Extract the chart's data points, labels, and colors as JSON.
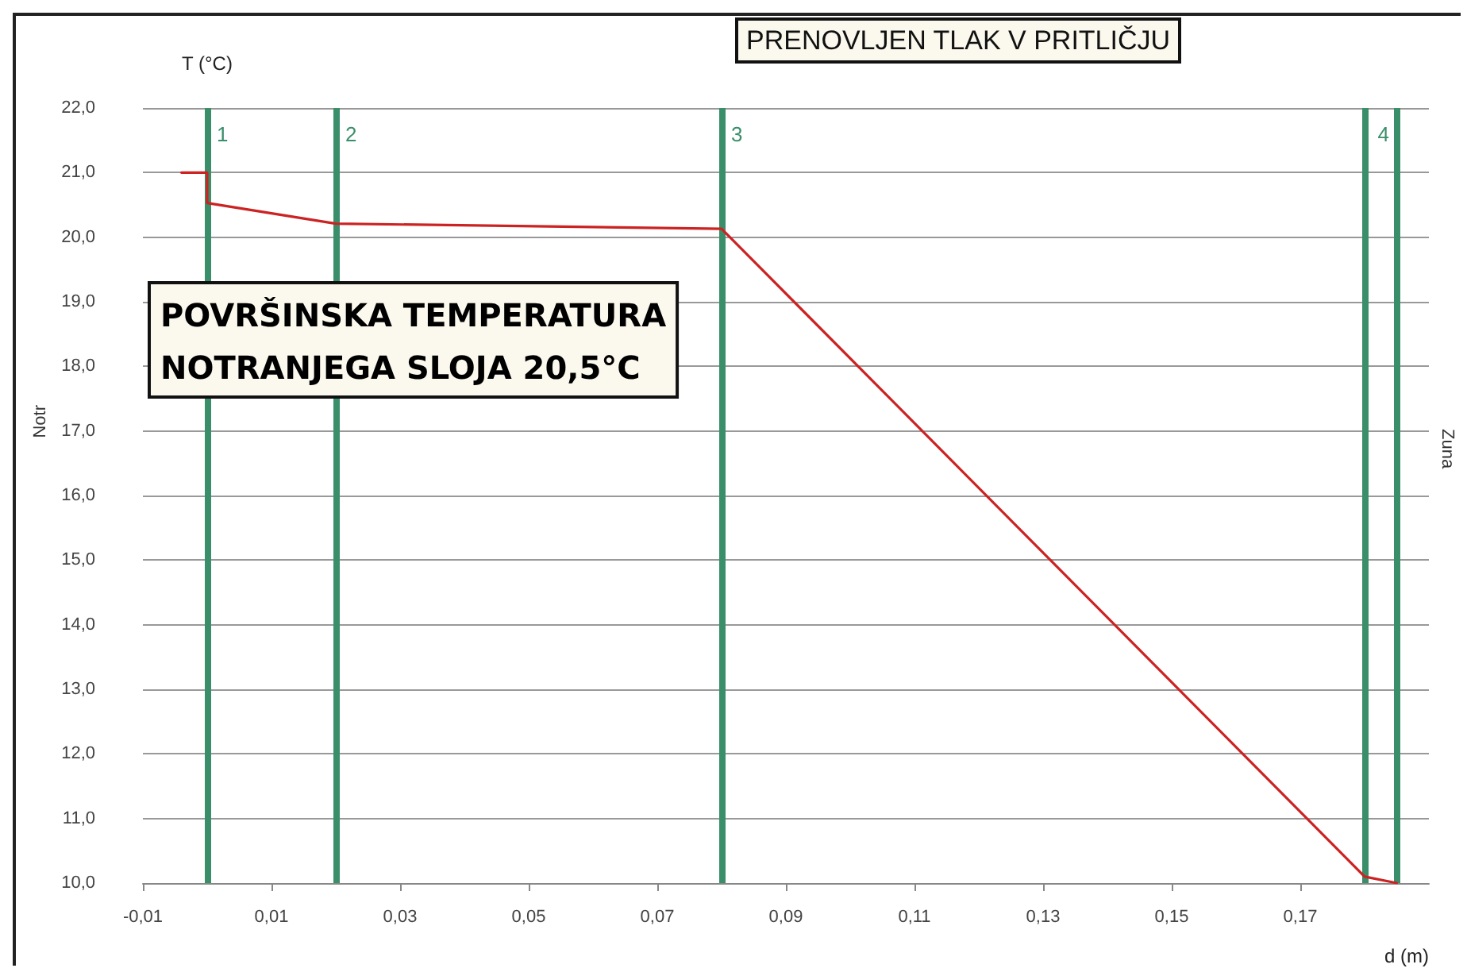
{
  "chart_data": {
    "type": "line",
    "title": "PRENOVLJEN TLAK V PRITLIČJU",
    "xlabel": "d (m)",
    "ylabel": "T (°C)",
    "x": [
      -0.004,
      0.0,
      0.0,
      0.02,
      0.08,
      0.18,
      0.185
    ],
    "series": [
      {
        "color": "#cc2222",
        "values": [
          21.0,
          21.0,
          20.53,
          20.21,
          20.13,
          10.1,
          10.0
        ]
      }
    ],
    "xlim": [
      -0.01,
      0.19
    ],
    "xticks": [
      {
        "value": -0.01,
        "label": "-0,01"
      },
      {
        "value": 0.01,
        "label": "0,01"
      },
      {
        "value": 0.03,
        "label": "0,03"
      },
      {
        "value": 0.05,
        "label": "0,05"
      },
      {
        "value": 0.07,
        "label": "0,07"
      },
      {
        "value": 0.09,
        "label": "0,09"
      },
      {
        "value": 0.11,
        "label": "0,11"
      },
      {
        "value": 0.13,
        "label": "0,13"
      },
      {
        "value": 0.15,
        "label": "0,15"
      },
      {
        "value": 0.17,
        "label": "0,17"
      }
    ],
    "ylim": [
      10,
      22
    ],
    "yticks": [
      {
        "value": 10,
        "label": "10,0"
      },
      {
        "value": 11,
        "label": "11,0"
      },
      {
        "value": 12,
        "label": "12,0"
      },
      {
        "value": 13,
        "label": "13,0"
      },
      {
        "value": 14,
        "label": "14,0"
      },
      {
        "value": 15,
        "label": "15,0"
      },
      {
        "value": 16,
        "label": "16,0"
      },
      {
        "value": 17,
        "label": "17,0"
      },
      {
        "value": 18,
        "label": "18,0"
      },
      {
        "value": 19,
        "label": "19,0"
      },
      {
        "value": 20,
        "label": "20,0"
      },
      {
        "value": 21,
        "label": "21,0"
      },
      {
        "value": 22,
        "label": "22,0"
      }
    ],
    "grid": "y",
    "marker": "none",
    "line_style": "solid",
    "ref_lines": [
      {
        "axis": "x",
        "value": 0.0,
        "color": "#3a8f6a"
      },
      {
        "axis": "x",
        "value": 0.02,
        "color": "#3a8f6a"
      },
      {
        "axis": "x",
        "value": 0.08,
        "color": "#3a8f6a"
      },
      {
        "axis": "x",
        "value": 0.18,
        "color": "#3a8f6a"
      },
      {
        "axis": "x",
        "value": 0.185,
        "color": "#3a8f6a"
      }
    ],
    "annotations": [
      "POVRŠINSKA TEMPERATURA\nNOTRANJEGA SLOJA 20,5°C",
      "Notr",
      "Zuna",
      {
        "text": "1",
        "x": 0.0,
        "y": 21.6
      },
      {
        "text": "2",
        "x": 0.02,
        "y": 21.6
      },
      {
        "text": "3",
        "x": 0.08,
        "y": 21.6
      },
      {
        "text": "4",
        "x": 0.185,
        "y": 21.6
      }
    ]
  }
}
